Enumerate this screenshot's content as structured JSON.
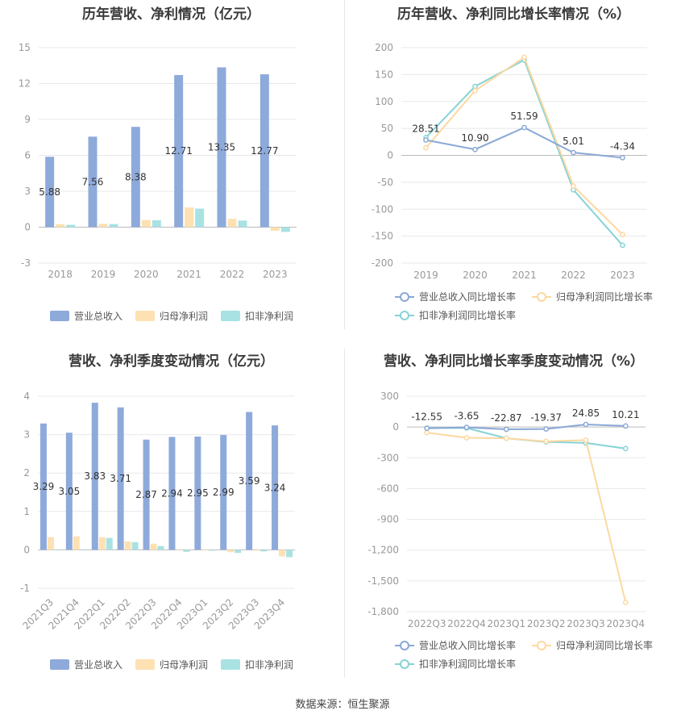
{
  "source_label": "数据来源：恒生聚源",
  "colors": {
    "revenue": "#8eaadb",
    "parent_profit": "#fde1b2",
    "nonrecurring_profit": "#a9e2e3",
    "axis_text": "#999999",
    "grid": "#e8e8e8"
  },
  "legend": {
    "bars": [
      "营业总收入",
      "归母净利润",
      "扣非净利润"
    ],
    "lines": [
      "营业总收入同比增长率",
      "归母净利润同比增长率",
      "扣非净利润同比增长率"
    ]
  },
  "chart_data": [
    {
      "type": "bar",
      "title": "历年营收、净利情况（亿元）",
      "categories": [
        "2018",
        "2019",
        "2020",
        "2021",
        "2022",
        "2023"
      ],
      "series": [
        {
          "name": "营业总收入",
          "values": [
            5.88,
            7.56,
            8.38,
            12.71,
            13.35,
            12.77
          ],
          "labels": [
            "5.88",
            "7.56",
            "8.38",
            "12.71",
            "13.35",
            "12.77"
          ]
        },
        {
          "name": "归母净利润",
          "values": [
            0.25,
            0.28,
            0.6,
            1.65,
            0.7,
            -0.3
          ]
        },
        {
          "name": "扣非净利润",
          "values": [
            0.2,
            0.26,
            0.58,
            1.55,
            0.55,
            -0.4
          ]
        }
      ],
      "ylim": [
        -3,
        15
      ],
      "yticks": [
        -3,
        0,
        3,
        6,
        9,
        12,
        15
      ],
      "ytick_labels": [
        "-3",
        "0",
        "3",
        "6",
        "9",
        "12",
        "15"
      ],
      "legend_position": "bottom"
    },
    {
      "type": "line",
      "title": "历年营收、净利同比增长率情况（%）",
      "categories": [
        "2019",
        "2020",
        "2021",
        "2022",
        "2023"
      ],
      "series": [
        {
          "name": "营业总收入同比增长率",
          "values": [
            28.51,
            10.9,
            51.59,
            5.01,
            -4.34
          ],
          "labels": [
            "28.51",
            "10.90",
            "51.59",
            "5.01",
            "-4.34"
          ]
        },
        {
          "name": "归母净利润同比增长率",
          "values": [
            14,
            120,
            182,
            -57,
            -147
          ]
        },
        {
          "name": "扣非净利润同比增长率",
          "values": [
            33,
            128,
            177,
            -64,
            -167
          ]
        }
      ],
      "ylim": [
        -200,
        200
      ],
      "yticks": [
        -200,
        -150,
        -100,
        -50,
        0,
        50,
        100,
        150,
        200
      ],
      "ytick_labels": [
        "-200",
        "-150",
        "-100",
        "-50",
        "0",
        "50",
        "100",
        "150",
        "200"
      ],
      "legend_position": "bottom"
    },
    {
      "type": "bar",
      "title": "营收、净利季度变动情况（亿元）",
      "categories": [
        "2021Q3",
        "2021Q4",
        "2022Q1",
        "2022Q2",
        "2022Q3",
        "2022Q4",
        "2023Q1",
        "2023Q2",
        "2023Q3",
        "2023Q4"
      ],
      "series": [
        {
          "name": "营业总收入",
          "values": [
            3.29,
            3.05,
            3.83,
            3.71,
            2.87,
            2.94,
            2.95,
            2.99,
            3.59,
            3.24
          ],
          "labels": [
            "3.29",
            "3.05",
            "3.83",
            "3.71",
            "2.87",
            "2.94",
            "2.95",
            "2.99",
            "3.59",
            "3.24"
          ]
        },
        {
          "name": "归母净利润",
          "values": [
            0.33,
            0.35,
            0.33,
            0.22,
            0.16,
            0.0,
            -0.01,
            -0.06,
            -0.02,
            -0.17
          ]
        },
        {
          "name": "扣非净利润",
          "values": [
            0.0,
            0.0,
            0.31,
            0.2,
            0.1,
            -0.05,
            -0.02,
            -0.08,
            -0.04,
            -0.19
          ]
        }
      ],
      "ylim": [
        -1,
        4
      ],
      "yticks": [
        -1,
        0,
        1,
        2,
        3,
        4
      ],
      "ytick_labels": [
        "-1",
        "0",
        "1",
        "2",
        "3",
        "4"
      ],
      "legend_position": "bottom"
    },
    {
      "type": "line",
      "title": "营收、净利同比增长率季度变动情况（%）",
      "categories": [
        "2022Q3",
        "2022Q4",
        "2023Q1",
        "2023Q2",
        "2023Q3",
        "2023Q4"
      ],
      "series": [
        {
          "name": "营业总收入同比增长率",
          "values": [
            -12.55,
            -3.65,
            -22.87,
            -19.37,
            24.85,
            10.21
          ],
          "labels": [
            "-12.55",
            "-3.65",
            "-22.87",
            "-19.37",
            "24.85",
            "10.21"
          ]
        },
        {
          "name": "归母净利润同比增长率",
          "values": [
            -55,
            -105,
            -110,
            -140,
            -128,
            -1710
          ]
        },
        {
          "name": "扣非净利润同比增长率",
          "values": [
            -10,
            -10,
            -110,
            -145,
            -155,
            -210
          ]
        }
      ],
      "ylim": [
        -1800,
        300
      ],
      "yticks": [
        -1800,
        -1500,
        -1200,
        -900,
        -600,
        -300,
        0,
        300
      ],
      "ytick_labels": [
        "-1,800",
        "-1,500",
        "-1,200",
        "-900",
        "-600",
        "-300",
        "0",
        "300"
      ],
      "legend_position": "bottom"
    }
  ]
}
